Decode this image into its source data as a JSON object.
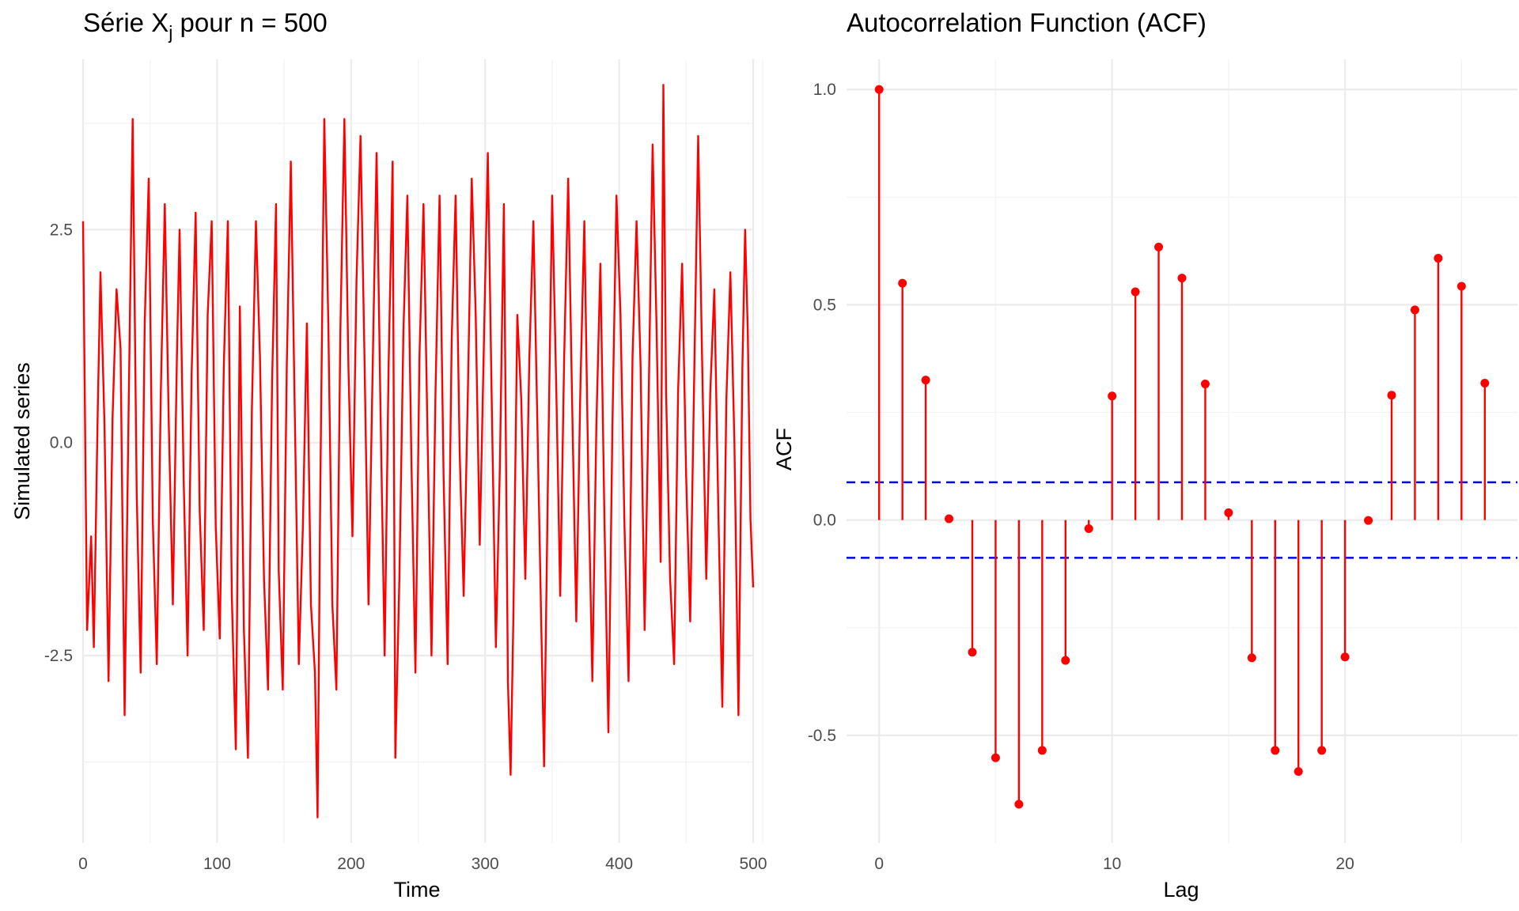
{
  "colors": {
    "series": "#ff0000",
    "ci": "#0000ff",
    "grid": "#ebebeb"
  },
  "chart_data": [
    {
      "type": "line",
      "title_main": "Série X",
      "title_sub": "j",
      "title_rest": " pour n = 500",
      "xlabel": "Time",
      "ylabel": "Simulated series",
      "xlim": [
        0,
        500
      ],
      "ylim": [
        -4.7,
        4.5
      ],
      "xticks": [
        0,
        100,
        200,
        300,
        400,
        500
      ],
      "xtick_labels": [
        "0",
        "100",
        "200",
        "300",
        "400",
        "500"
      ],
      "yticks": [
        -2.5,
        0,
        2.5
      ],
      "ytick_labels": [
        "-2.5",
        "0.0",
        "2.5"
      ],
      "grid": true,
      "series": [
        {
          "color": "#ff0000",
          "keypoints": [
            [
              0,
              2.6
            ],
            [
              3,
              -2.2
            ],
            [
              6,
              -1.1
            ],
            [
              8,
              -2.4
            ],
            [
              11,
              0.4
            ],
            [
              13,
              2.0
            ],
            [
              16,
              0.2
            ],
            [
              19,
              -2.8
            ],
            [
              22,
              0.3
            ],
            [
              25,
              1.8
            ],
            [
              28,
              1.1
            ],
            [
              31,
              -3.2
            ],
            [
              34,
              0.4
            ],
            [
              37,
              3.8
            ],
            [
              40,
              -0.6
            ],
            [
              43,
              -2.7
            ],
            [
              46,
              1.4
            ],
            [
              49,
              3.1
            ],
            [
              52,
              -0.9
            ],
            [
              55,
              -2.6
            ],
            [
              58,
              0.6
            ],
            [
              61,
              2.8
            ],
            [
              64,
              0.2
            ],
            [
              67,
              -1.9
            ],
            [
              70,
              1.0
            ],
            [
              72,
              2.5
            ],
            [
              75,
              -0.4
            ],
            [
              78,
              -2.5
            ],
            [
              81,
              0.8
            ],
            [
              84,
              2.7
            ],
            [
              87,
              -0.8
            ],
            [
              90,
              -2.2
            ],
            [
              93,
              1.5
            ],
            [
              96,
              2.6
            ],
            [
              99,
              -1.0
            ],
            [
              102,
              -2.3
            ],
            [
              105,
              0.9
            ],
            [
              108,
              2.6
            ],
            [
              111,
              -1.8
            ],
            [
              114,
              -3.6
            ],
            [
              117,
              1.6
            ],
            [
              120,
              -2.2
            ],
            [
              123,
              -3.7
            ],
            [
              126,
              0.4
            ],
            [
              129,
              2.6
            ],
            [
              132,
              1.0
            ],
            [
              135,
              -1.6
            ],
            [
              138,
              -2.9
            ],
            [
              141,
              0.7
            ],
            [
              144,
              2.8
            ],
            [
              146,
              -1.5
            ],
            [
              149,
              -2.9
            ],
            [
              152,
              0.9
            ],
            [
              155,
              3.3
            ],
            [
              158,
              0.3
            ],
            [
              161,
              -2.6
            ],
            [
              164,
              -1.0
            ],
            [
              167,
              1.4
            ],
            [
              170,
              -1.9
            ],
            [
              173,
              -2.7
            ],
            [
              175,
              -4.4
            ],
            [
              177,
              -0.6
            ],
            [
              180,
              3.8
            ],
            [
              183,
              1.4
            ],
            [
              186,
              -1.9
            ],
            [
              189,
              -2.9
            ],
            [
              192,
              1.3
            ],
            [
              195,
              3.8
            ],
            [
              198,
              0.9
            ],
            [
              201,
              -1.1
            ],
            [
              204,
              1.9
            ],
            [
              207,
              3.6
            ],
            [
              210,
              1.0
            ],
            [
              213,
              -1.9
            ],
            [
              216,
              0.8
            ],
            [
              219,
              3.4
            ],
            [
              222,
              0.3
            ],
            [
              225,
              -2.5
            ],
            [
              228,
              0.9
            ],
            [
              231,
              3.3
            ],
            [
              233,
              -3.7
            ],
            [
              236,
              -1.6
            ],
            [
              239,
              1.3
            ],
            [
              242,
              2.9
            ],
            [
              245,
              -0.2
            ],
            [
              248,
              -2.7
            ],
            [
              251,
              1.0
            ],
            [
              254,
              2.8
            ],
            [
              257,
              0.1
            ],
            [
              260,
              -2.5
            ],
            [
              263,
              0.6
            ],
            [
              266,
              2.9
            ],
            [
              269,
              -0.4
            ],
            [
              272,
              -2.6
            ],
            [
              275,
              1.2
            ],
            [
              278,
              2.9
            ],
            [
              281,
              -0.1
            ],
            [
              284,
              -1.8
            ],
            [
              287,
              0.5
            ],
            [
              290,
              3.1
            ],
            [
              293,
              1.5
            ],
            [
              296,
              -1.2
            ],
            [
              299,
              1.1
            ],
            [
              302,
              3.4
            ],
            [
              305,
              0.4
            ],
            [
              308,
              -2.4
            ],
            [
              311,
              -0.3
            ],
            [
              314,
              2.8
            ],
            [
              317,
              -2.8
            ],
            [
              319,
              -3.9
            ],
            [
              321,
              -2.1
            ],
            [
              324,
              1.5
            ],
            [
              327,
              0.5
            ],
            [
              330,
              -1.6
            ],
            [
              333,
              1.0
            ],
            [
              336,
              2.6
            ],
            [
              339,
              0.2
            ],
            [
              342,
              -2.2
            ],
            [
              344,
              -3.8
            ],
            [
              347,
              -0.3
            ],
            [
              350,
              2.9
            ],
            [
              353,
              0.7
            ],
            [
              356,
              -1.8
            ],
            [
              359,
              1.0
            ],
            [
              362,
              3.1
            ],
            [
              365,
              0.4
            ],
            [
              368,
              -2.1
            ],
            [
              371,
              0.6
            ],
            [
              374,
              2.6
            ],
            [
              377,
              -0.4
            ],
            [
              380,
              -2.8
            ],
            [
              383,
              0.2
            ],
            [
              386,
              2.1
            ],
            [
              389,
              -0.9
            ],
            [
              392,
              -3.4
            ],
            [
              395,
              0.2
            ],
            [
              398,
              2.9
            ],
            [
              401,
              1.5
            ],
            [
              404,
              -1.0
            ],
            [
              407,
              -2.8
            ],
            [
              410,
              1.0
            ],
            [
              413,
              2.6
            ],
            [
              416,
              0.9
            ],
            [
              419,
              -2.2
            ],
            [
              422,
              0.5
            ],
            [
              425,
              3.5
            ],
            [
              428,
              1.3
            ],
            [
              431,
              -1.4
            ],
            [
              433,
              4.2
            ],
            [
              435,
              0.6
            ],
            [
              438,
              -1.6
            ],
            [
              441,
              -2.6
            ],
            [
              444,
              0.6
            ],
            [
              447,
              2.1
            ],
            [
              450,
              -0.4
            ],
            [
              453,
              -2.1
            ],
            [
              456,
              0.8
            ],
            [
              459,
              3.6
            ],
            [
              462,
              0.9
            ],
            [
              465,
              -1.6
            ],
            [
              468,
              0.6
            ],
            [
              471,
              1.8
            ],
            [
              474,
              -0.8
            ],
            [
              477,
              -3.1
            ],
            [
              480,
              0.5
            ],
            [
              483,
              2.0
            ],
            [
              486,
              0.0
            ],
            [
              489,
              -3.2
            ],
            [
              492,
              0.9
            ],
            [
              494,
              2.5
            ],
            [
              496,
              1.3
            ],
            [
              498,
              -0.9
            ],
            [
              500,
              -1.7
            ]
          ]
        }
      ]
    },
    {
      "type": "lollipop",
      "title": "Autocorrelation Function (ACF)",
      "xlabel": "Lag",
      "ylabel": "ACF",
      "xlim": [
        -1.4,
        27.4
      ],
      "ylim": [
        -0.75,
        1.07
      ],
      "xticks": [
        0,
        10,
        20
      ],
      "xtick_labels": [
        "0",
        "10",
        "20"
      ],
      "yticks": [
        -0.5,
        0,
        0.5,
        1.0
      ],
      "ytick_labels": [
        "-0.5",
        "0.0",
        "0.5",
        "1.0"
      ],
      "grid": true,
      "ci": [
        0.0877,
        -0.0877
      ],
      "lags": [
        0,
        1,
        2,
        3,
        4,
        5,
        6,
        7,
        8,
        9,
        10,
        11,
        12,
        13,
        14,
        15,
        16,
        17,
        18,
        19,
        20,
        21,
        22,
        23,
        24,
        25,
        26
      ],
      "acf": [
        1.0,
        0.55,
        0.325,
        0.003,
        -0.307,
        -0.552,
        -0.66,
        -0.535,
        -0.326,
        -0.02,
        0.288,
        0.53,
        0.634,
        0.562,
        0.316,
        0.017,
        -0.32,
        -0.535,
        -0.584,
        -0.535,
        -0.318,
        -0.001,
        0.29,
        0.488,
        0.608,
        0.543,
        0.318
      ]
    }
  ]
}
